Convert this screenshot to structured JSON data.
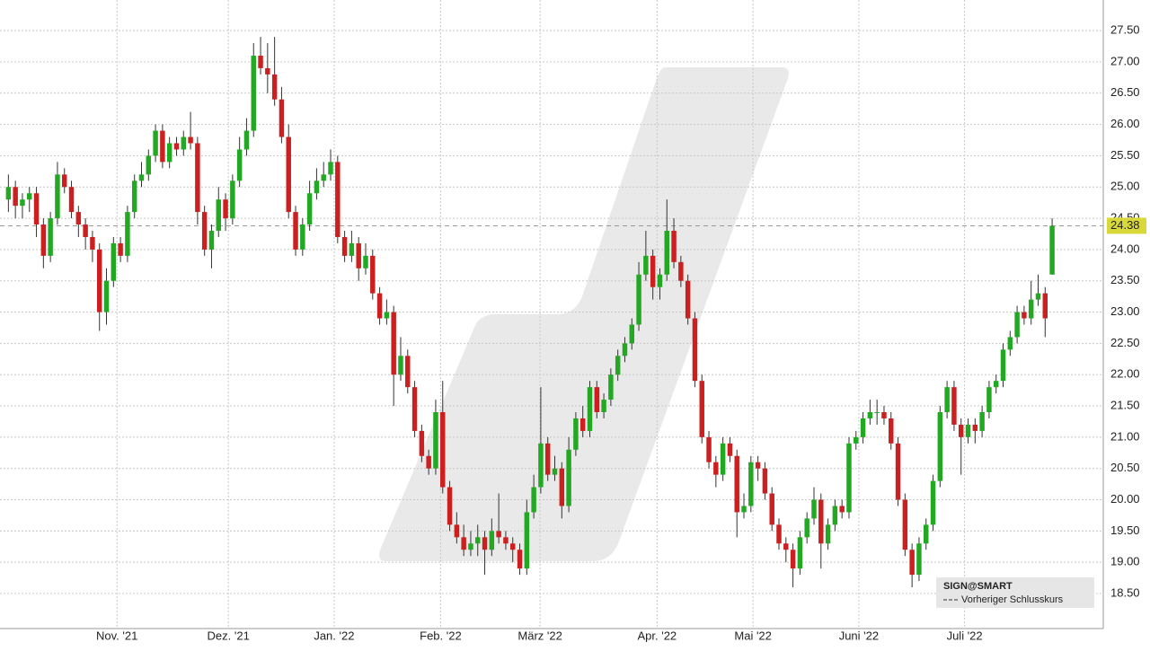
{
  "chart_data": {
    "type": "candlestick",
    "colors": {
      "up": "#22a822",
      "down": "#cc1f1f",
      "wick": "#333333"
    },
    "xlim": [
      -1.2,
      156.3
    ],
    "ylim": [
      17.94,
      27.99
    ],
    "xticks": [
      {
        "value": 15.5,
        "label": "Nov. '21"
      },
      {
        "value": 31.4,
        "label": "Dez. '21"
      },
      {
        "value": 46.5,
        "label": "Jan. '22"
      },
      {
        "value": 61.7,
        "label": "Feb. '22"
      },
      {
        "value": 75.9,
        "label": "März '22"
      },
      {
        "value": 92.6,
        "label": "Apr. '22"
      },
      {
        "value": 106.3,
        "label": "Mai '22"
      },
      {
        "value": 121.4,
        "label": "Juni '22"
      },
      {
        "value": 136.5,
        "label": "Juli '22"
      }
    ],
    "yticks": [
      {
        "value": 18.5,
        "label": "18.50"
      },
      {
        "value": 19,
        "label": "19.00"
      },
      {
        "value": 19.5,
        "label": "19.50"
      },
      {
        "value": 20,
        "label": "20.00"
      },
      {
        "value": 20.5,
        "label": "20.50"
      },
      {
        "value": 21,
        "label": "21.00"
      },
      {
        "value": 21.5,
        "label": "21.50"
      },
      {
        "value": 22,
        "label": "22.00"
      },
      {
        "value": 22.5,
        "label": "22.50"
      },
      {
        "value": 23,
        "label": "23.00"
      },
      {
        "value": 23.5,
        "label": "23.50"
      },
      {
        "value": 24,
        "label": "24.00"
      },
      {
        "value": 24.5,
        "label": "24.50"
      },
      {
        "value": 25,
        "label": "25.00"
      },
      {
        "value": 25.5,
        "label": "25.50"
      },
      {
        "value": 26,
        "label": "26.00"
      },
      {
        "value": 26.5,
        "label": "26.50"
      },
      {
        "value": 27,
        "label": "27.00"
      },
      {
        "value": 27.5,
        "label": "27.50"
      }
    ],
    "grid": true,
    "last_price": {
      "value": 24.38,
      "label": "24.38"
    },
    "legend": {
      "title": "SIGN@SMART",
      "entry": "Vorheriger Schlusskurs"
    },
    "ohlc": [
      [
        24.8,
        25.2,
        24.6,
        25.0
      ],
      [
        25.0,
        25.1,
        24.5,
        24.7
      ],
      [
        24.7,
        24.9,
        24.5,
        24.8
      ],
      [
        24.8,
        25.0,
        24.6,
        24.9
      ],
      [
        24.9,
        25.0,
        24.2,
        24.4
      ],
      [
        24.4,
        24.5,
        23.7,
        23.9
      ],
      [
        23.9,
        24.6,
        23.8,
        24.5
      ],
      [
        24.5,
        25.4,
        24.4,
        25.2
      ],
      [
        25.2,
        25.3,
        24.9,
        25.0
      ],
      [
        25.0,
        25.1,
        24.5,
        24.6
      ],
      [
        24.6,
        24.7,
        24.2,
        24.4
      ],
      [
        24.4,
        24.5,
        24.0,
        24.2
      ],
      [
        24.2,
        24.3,
        23.8,
        24.0
      ],
      [
        24.0,
        24.1,
        22.7,
        23.0
      ],
      [
        23.0,
        23.7,
        22.8,
        23.5
      ],
      [
        23.5,
        24.2,
        23.4,
        24.1
      ],
      [
        24.1,
        24.2,
        23.8,
        23.9
      ],
      [
        23.9,
        24.7,
        23.8,
        24.6
      ],
      [
        24.6,
        25.2,
        24.5,
        25.1
      ],
      [
        25.1,
        25.4,
        25.0,
        25.2
      ],
      [
        25.2,
        25.6,
        25.1,
        25.5
      ],
      [
        25.5,
        26.0,
        25.4,
        25.9
      ],
      [
        25.9,
        26.0,
        25.3,
        25.4
      ],
      [
        25.4,
        25.8,
        25.3,
        25.7
      ],
      [
        25.7,
        25.8,
        25.5,
        25.6
      ],
      [
        25.6,
        25.9,
        25.5,
        25.8
      ],
      [
        25.8,
        26.2,
        25.6,
        25.7
      ],
      [
        25.7,
        25.8,
        24.4,
        24.6
      ],
      [
        24.6,
        24.7,
        23.9,
        24.0
      ],
      [
        24.0,
        24.4,
        23.7,
        24.3
      ],
      [
        24.3,
        25.0,
        24.2,
        24.8
      ],
      [
        24.8,
        24.9,
        24.3,
        24.5
      ],
      [
        24.5,
        25.2,
        24.4,
        25.1
      ],
      [
        25.1,
        25.8,
        25.0,
        25.6
      ],
      [
        25.6,
        26.1,
        25.5,
        25.9
      ],
      [
        25.9,
        27.3,
        25.8,
        27.1
      ],
      [
        27.1,
        27.4,
        26.8,
        26.9
      ],
      [
        26.9,
        27.3,
        26.5,
        26.8
      ],
      [
        26.8,
        27.4,
        26.3,
        26.4
      ],
      [
        26.4,
        26.6,
        25.7,
        25.8
      ],
      [
        25.8,
        26.0,
        24.5,
        24.6
      ],
      [
        24.6,
        24.7,
        23.9,
        24.0
      ],
      [
        24.0,
        24.5,
        23.9,
        24.4
      ],
      [
        24.4,
        25.1,
        24.3,
        24.9
      ],
      [
        24.9,
        25.3,
        24.8,
        25.1
      ],
      [
        25.1,
        25.4,
        25.0,
        25.2
      ],
      [
        25.2,
        25.6,
        25.1,
        25.4
      ],
      [
        25.4,
        25.5,
        24.1,
        24.2
      ],
      [
        24.2,
        24.3,
        23.8,
        23.9
      ],
      [
        23.9,
        24.3,
        23.8,
        24.1
      ],
      [
        24.1,
        24.2,
        23.5,
        23.7
      ],
      [
        23.7,
        24.1,
        23.6,
        23.9
      ],
      [
        23.9,
        24.0,
        23.2,
        23.3
      ],
      [
        23.3,
        23.4,
        22.8,
        22.9
      ],
      [
        22.9,
        23.2,
        22.8,
        23.0
      ],
      [
        23.0,
        23.1,
        21.5,
        22.0
      ],
      [
        22.0,
        22.6,
        21.9,
        22.3
      ],
      [
        22.3,
        22.4,
        21.7,
        21.8
      ],
      [
        21.8,
        21.9,
        21.0,
        21.1
      ],
      [
        21.1,
        21.2,
        20.6,
        20.7
      ],
      [
        20.7,
        20.8,
        20.4,
        20.5
      ],
      [
        20.5,
        21.6,
        20.4,
        21.4
      ],
      [
        21.4,
        21.9,
        20.1,
        20.2
      ],
      [
        20.2,
        20.3,
        19.5,
        19.6
      ],
      [
        19.6,
        19.8,
        19.3,
        19.4
      ],
      [
        19.4,
        19.6,
        19.1,
        19.2
      ],
      [
        19.2,
        19.5,
        19.1,
        19.3
      ],
      [
        19.3,
        19.6,
        19.1,
        19.4
      ],
      [
        19.4,
        19.5,
        18.8,
        19.2
      ],
      [
        19.2,
        19.7,
        19.1,
        19.5
      ],
      [
        19.5,
        20.1,
        19.3,
        19.4
      ],
      [
        19.4,
        19.5,
        19.2,
        19.3
      ],
      [
        19.3,
        19.4,
        19.0,
        19.2
      ],
      [
        19.2,
        19.3,
        18.8,
        18.9
      ],
      [
        18.9,
        20.0,
        18.8,
        19.8
      ],
      [
        19.8,
        20.4,
        19.7,
        20.2
      ],
      [
        20.2,
        21.8,
        20.1,
        20.9
      ],
      [
        20.9,
        21.0,
        20.3,
        20.4
      ],
      [
        20.4,
        20.7,
        20.3,
        20.5
      ],
      [
        20.5,
        20.6,
        19.7,
        19.9
      ],
      [
        19.9,
        21.0,
        19.8,
        20.8
      ],
      [
        20.8,
        21.4,
        20.7,
        21.3
      ],
      [
        21.3,
        21.5,
        21.0,
        21.1
      ],
      [
        21.1,
        21.9,
        21.0,
        21.8
      ],
      [
        21.8,
        21.9,
        21.3,
        21.4
      ],
      [
        21.4,
        21.7,
        21.3,
        21.6
      ],
      [
        21.6,
        22.1,
        21.5,
        22.0
      ],
      [
        22.0,
        22.4,
        21.9,
        22.3
      ],
      [
        22.3,
        22.6,
        22.2,
        22.5
      ],
      [
        22.5,
        22.9,
        22.4,
        22.8
      ],
      [
        22.8,
        23.8,
        22.7,
        23.6
      ],
      [
        23.6,
        24.3,
        23.5,
        23.9
      ],
      [
        23.9,
        24.0,
        23.2,
        23.4
      ],
      [
        23.4,
        23.7,
        23.2,
        23.6
      ],
      [
        23.6,
        24.8,
        23.5,
        24.3
      ],
      [
        24.3,
        24.5,
        23.7,
        23.8
      ],
      [
        23.8,
        23.9,
        23.4,
        23.5
      ],
      [
        23.5,
        23.6,
        22.8,
        22.9
      ],
      [
        22.9,
        23.0,
        21.8,
        21.9
      ],
      [
        21.9,
        22.0,
        20.9,
        21.0
      ],
      [
        21.0,
        21.1,
        20.5,
        20.6
      ],
      [
        20.6,
        20.7,
        20.2,
        20.4
      ],
      [
        20.4,
        21.0,
        20.3,
        20.9
      ],
      [
        20.9,
        21.0,
        20.6,
        20.7
      ],
      [
        20.7,
        20.8,
        19.4,
        19.8
      ],
      [
        19.8,
        20.1,
        19.7,
        19.9
      ],
      [
        19.9,
        20.7,
        19.8,
        20.6
      ],
      [
        20.6,
        20.7,
        20.3,
        20.5
      ],
      [
        20.5,
        20.6,
        20.0,
        20.1
      ],
      [
        20.1,
        20.2,
        19.5,
        19.6
      ],
      [
        19.6,
        19.7,
        19.2,
        19.3
      ],
      [
        19.3,
        19.4,
        19.0,
        19.2
      ],
      [
        19.2,
        19.3,
        18.6,
        18.9
      ],
      [
        18.9,
        19.5,
        18.8,
        19.4
      ],
      [
        19.4,
        19.8,
        19.3,
        19.7
      ],
      [
        19.7,
        20.2,
        19.6,
        20.0
      ],
      [
        20.0,
        20.1,
        18.9,
        19.3
      ],
      [
        19.3,
        19.7,
        19.2,
        19.6
      ],
      [
        19.6,
        20.0,
        19.5,
        19.9
      ],
      [
        19.9,
        20.0,
        19.7,
        19.8
      ],
      [
        19.8,
        21.0,
        19.7,
        20.9
      ],
      [
        20.9,
        21.1,
        20.8,
        21.0
      ],
      [
        21.0,
        21.4,
        20.9,
        21.3
      ],
      [
        21.3,
        21.6,
        21.2,
        21.4
      ],
      [
        21.4,
        21.6,
        21.2,
        21.4
      ],
      [
        21.4,
        21.5,
        21.2,
        21.3
      ],
      [
        21.3,
        21.4,
        20.8,
        20.9
      ],
      [
        20.9,
        21.0,
        19.9,
        20.0
      ],
      [
        20.0,
        20.1,
        19.1,
        19.2
      ],
      [
        19.2,
        19.3,
        18.6,
        18.8
      ],
      [
        18.8,
        19.4,
        18.7,
        19.3
      ],
      [
        19.3,
        19.7,
        19.2,
        19.6
      ],
      [
        19.6,
        20.4,
        19.5,
        20.3
      ],
      [
        20.3,
        21.5,
        20.2,
        21.4
      ],
      [
        21.4,
        21.9,
        21.3,
        21.8
      ],
      [
        21.8,
        21.9,
        21.1,
        21.2
      ],
      [
        21.2,
        21.3,
        20.4,
        21.0
      ],
      [
        21.0,
        21.3,
        20.9,
        21.2
      ],
      [
        21.2,
        21.3,
        20.9,
        21.1
      ],
      [
        21.1,
        21.5,
        21.0,
        21.4
      ],
      [
        21.4,
        21.9,
        21.3,
        21.8
      ],
      [
        21.8,
        22.0,
        21.7,
        21.9
      ],
      [
        21.9,
        22.5,
        21.8,
        22.4
      ],
      [
        22.4,
        22.7,
        22.3,
        22.6
      ],
      [
        22.6,
        23.1,
        22.5,
        23.0
      ],
      [
        23.0,
        23.1,
        22.8,
        22.9
      ],
      [
        22.9,
        23.5,
        22.8,
        23.2
      ],
      [
        23.2,
        23.6,
        23.1,
        23.3
      ],
      [
        23.3,
        23.4,
        22.6,
        22.9
      ],
      [
        23.6,
        24.5,
        23.6,
        24.38
      ]
    ]
  }
}
